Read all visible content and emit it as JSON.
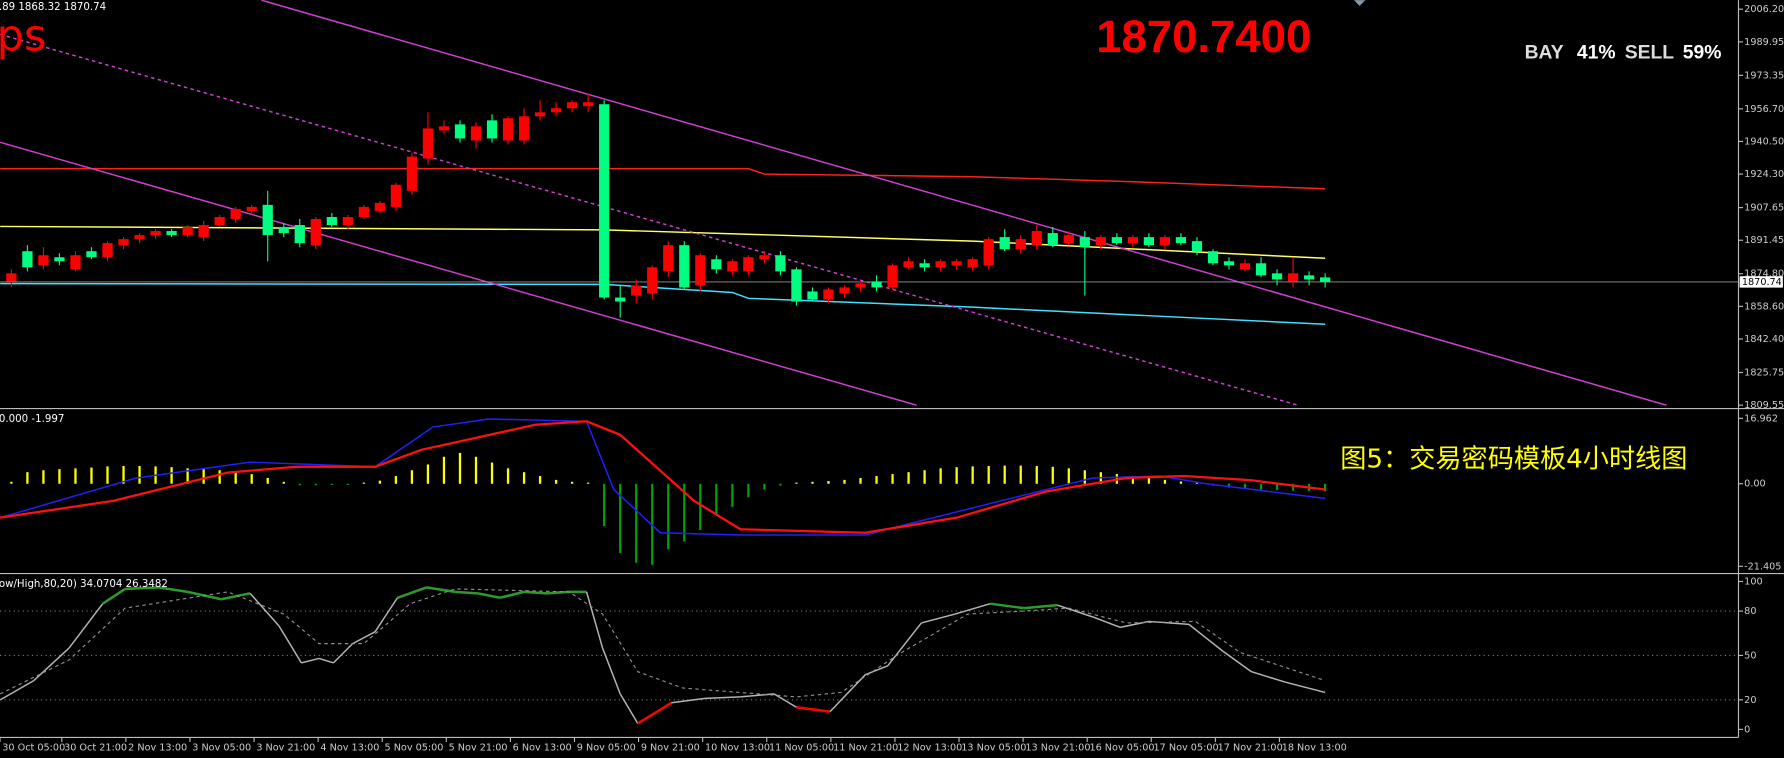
{
  "chart_data": [
    {
      "type": "candlestick",
      "header": ".89 1868.32 1870.74",
      "label": "ps",
      "price_text": "1870.7400",
      "sentiment": [
        {
          "name": "BAY",
          "label": "41%",
          "color": "#00e000"
        },
        {
          "name": "SELL",
          "label": "59%",
          "color": "#ff0000"
        }
      ],
      "current_price": 1870.74,
      "up_color": "#ff0000",
      "down_color": "#00ff80",
      "categories": [
        "30 Oct 05:00",
        null,
        null,
        null,
        "30 Oct 21:00",
        null,
        null,
        null,
        "2 Nov 13:00",
        null,
        null,
        null,
        "3 Nov 05:00",
        null,
        null,
        null,
        "3 Nov 21:00",
        null,
        null,
        null,
        "4 Nov 13:00",
        null,
        null,
        null,
        "5 Nov 05:00",
        null,
        null,
        null,
        "5 Nov 21:00",
        null,
        null,
        null,
        "6 Nov 13:00",
        null,
        null,
        null,
        "9 Nov 05:00",
        null,
        null,
        null,
        "9 Nov 21:00",
        null,
        null,
        null,
        "10 Nov 13:00",
        null,
        null,
        null,
        "11 Nov 05:00",
        null,
        null,
        null,
        "11 Nov 21:00",
        null,
        null,
        null,
        "12 Nov 13:00",
        null,
        null,
        null,
        "13 Nov 05:00",
        null,
        null,
        null,
        "13 Nov 21:00",
        null,
        null,
        null,
        "16 Nov 05:00",
        null,
        null,
        null,
        "17 Nov 05:00",
        null,
        null,
        null,
        "17 Nov 21:00",
        null,
        null,
        null,
        "18 Nov 13:00",
        null,
        null
      ],
      "open": [
        1871,
        1886,
        1879,
        1883,
        1877,
        1886,
        1883,
        1889,
        1892,
        1894,
        1896,
        1894,
        1893,
        1899,
        1902,
        1906,
        1909,
        1898,
        1899,
        1889,
        1903,
        1899,
        1903,
        1906,
        1908,
        1916,
        1932,
        1946,
        1949,
        1941,
        1951,
        1941,
        1941,
        1953,
        1955,
        1957,
        1958,
        1959,
        1863,
        1864,
        1865,
        1876,
        1889,
        1869,
        1882,
        1876,
        1876,
        1882,
        1884,
        1877,
        1866,
        1862,
        1865,
        1868,
        1871,
        1868,
        1878,
        1880,
        1878,
        1879,
        1878,
        1879,
        1893,
        1887,
        1889,
        1895,
        1890,
        1893,
        1889,
        1893,
        1890,
        1893,
        1889,
        1893,
        1891,
        1886,
        1881,
        1877,
        1880,
        1875,
        1871,
        1874,
        1873
      ],
      "high": [
        1877,
        1889,
        1888,
        1885,
        1886,
        1888,
        1891,
        1893,
        1895,
        1897,
        1897,
        1899,
        1901,
        1904,
        1908,
        1909,
        1916,
        1900,
        1902,
        1903,
        1905,
        1904,
        1909,
        1911,
        1920,
        1935,
        1955,
        1951,
        1951,
        1950,
        1954,
        1953,
        1957,
        1961,
        1960,
        1961,
        1964,
        1961,
        1869,
        1872,
        1879,
        1891,
        1891,
        1885,
        1884,
        1882,
        1884,
        1886,
        1886,
        1878,
        1868,
        1868,
        1869,
        1871,
        1874,
        1880,
        1883,
        1882,
        1882,
        1882,
        1883,
        1893,
        1897,
        1894,
        1899,
        1898,
        1896,
        1896,
        1894,
        1895,
        1894,
        1895,
        1894,
        1895,
        1893,
        1887,
        1883,
        1882,
        1883,
        1877,
        1883,
        1876,
        1875
      ],
      "low": [
        1868,
        1876,
        1877,
        1879,
        1876,
        1882,
        1881,
        1887,
        1890,
        1892,
        1893,
        1893,
        1891,
        1898,
        1900,
        1904,
        1881,
        1893,
        1888,
        1887,
        1898,
        1897,
        1902,
        1905,
        1906,
        1914,
        1929,
        1944,
        1940,
        1937,
        1940,
        1939,
        1939,
        1951,
        1953,
        1955,
        1955,
        1862,
        1853,
        1860,
        1862,
        1873,
        1867,
        1866,
        1875,
        1874,
        1874,
        1880,
        1874,
        1859,
        1861,
        1860,
        1863,
        1866,
        1866,
        1867,
        1877,
        1876,
        1876,
        1877,
        1876,
        1877,
        1886,
        1885,
        1887,
        1888,
        1889,
        1864,
        1887,
        1889,
        1888,
        1888,
        1887,
        1889,
        1884,
        1879,
        1877,
        1876,
        1873,
        1869,
        1868,
        1869,
        1868
      ],
      "close": [
        1875,
        1878,
        1884,
        1881,
        1884,
        1883,
        1890,
        1892,
        1894,
        1896,
        1894,
        1898,
        1899,
        1903,
        1907,
        1908,
        1894,
        1895,
        1890,
        1902,
        1899,
        1903,
        1908,
        1910,
        1919,
        1933,
        1947,
        1948,
        1942,
        1948,
        1942,
        1952,
        1953,
        1955,
        1957,
        1960,
        1960,
        1863,
        1861,
        1869,
        1878,
        1889,
        1868,
        1884,
        1877,
        1881,
        1883,
        1884,
        1876,
        1861,
        1862,
        1867,
        1868,
        1870,
        1868,
        1879,
        1881,
        1878,
        1881,
        1881,
        1882,
        1892,
        1887,
        1892,
        1896,
        1889,
        1894,
        1888,
        1893,
        1890,
        1893,
        1889,
        1893,
        1890,
        1886,
        1880,
        1879,
        1880,
        1874,
        1872,
        1875,
        1872,
        1870.74
      ],
      "lines": [
        {
          "color": "#ff2020",
          "x": [
            -0.7,
            46,
            47,
            60,
            70,
            82
          ],
          "values": [
            1927,
            1927,
            1924.3,
            1923,
            1920.5,
            1917
          ]
        },
        {
          "color": "#ffff66",
          "x": [
            -0.7,
            37,
            60,
            82
          ],
          "values": [
            1898.3,
            1896.6,
            1891,
            1882.5
          ]
        },
        {
          "color": "#40e0ff",
          "x": [
            -0.7,
            37,
            45,
            46,
            60,
            82
          ],
          "values": [
            1869.9,
            1869.5,
            1865.5,
            1862.6,
            1858.2,
            1849.7
          ]
        },
        {
          "color": "#d040d0",
          "x": [
            15.6,
            103.3
          ],
          "values": [
            2010.7,
            1809.5
          ]
        },
        {
          "color": "#d040d0",
          "x": [
            -0.7,
            56.5
          ],
          "values": [
            1940.1,
            1809.5
          ]
        },
        {
          "color": "#d040d0",
          "dash": true,
          "x": [
            -0.7,
            80.3
          ],
          "values": [
            1993.7,
            1809.5
          ]
        }
      ],
      "xlim": [
        -0.71,
        107.8
      ],
      "ylim": [
        1808.4,
        2010.7
      ],
      "yticks": [
        {
          "value": 2006.2,
          "label": "2006.20"
        },
        1989.95,
        1973.35,
        {
          "value": 1956.7,
          "label": "1956.70"
        },
        {
          "value": 1940.5,
          "label": "1940.50"
        },
        {
          "value": 1924.3,
          "label": "1924.30"
        },
        1907.65,
        1891.45,
        {
          "value": 1874.8,
          "label": "1874.80"
        },
        {
          "value": 1858.6,
          "label": "1858.60"
        },
        {
          "value": 1842.4,
          "label": "1842.40"
        },
        1825.75,
        1809.55
      ]
    },
    {
      "type": "bar",
      "header": "0.000 -1.997",
      "annotation": "图5：交易密码模板4小时线图",
      "pos_color": "#ffff00",
      "neg_color": "#00a000",
      "values": [
        0.5,
        3,
        3.5,
        3.8,
        4,
        4.2,
        4.5,
        4.6,
        4.6,
        4.5,
        4.3,
        4,
        3.8,
        3.5,
        3,
        2.5,
        1.5,
        0.5,
        -0.4,
        -0.4,
        -0.3,
        -0.3,
        0.3,
        0.8,
        2,
        3.5,
        5,
        7,
        8,
        7,
        5.5,
        4,
        3,
        2,
        1,
        0.5,
        0.3,
        -11,
        -18,
        -20.5,
        -21,
        -17,
        -15,
        -12,
        -8,
        -6,
        -3.5,
        -1.5,
        -0.5,
        0.3,
        0.5,
        0.7,
        1,
        1.5,
        2,
        2.5,
        3,
        3.5,
        4,
        4.3,
        4.5,
        4.6,
        4.7,
        4.7,
        4.6,
        4.4,
        4,
        3.5,
        3,
        2.5,
        2,
        1.5,
        1,
        0.6,
        0.3,
        -0.5,
        -1,
        -1.3,
        -1.5,
        -1.7,
        -1.8,
        -1.9,
        -1.997
      ],
      "lines": [
        {
          "color": "#2020ff",
          "x": [
            -0.7,
            7.8,
            14.9,
            22.7,
            26.3,
            29.8,
            35.9,
            37.6,
            40.5,
            45.5,
            53.3,
            56.1,
            61.8,
            67.5,
            71.7,
            74.6,
            82
          ],
          "values": [
            -8.8,
            1.5,
            5.6,
            4.4,
            14.7,
            16.8,
            16.2,
            -1.5,
            -12.7,
            -13.3,
            -13.3,
            -10.3,
            -4.4,
            1.5,
            2,
            0,
            -3.8
          ]
        },
        {
          "color": "#ff1010",
          "width": 2,
          "x": [
            -0.7,
            6.4,
            13.5,
            17.8,
            22.7,
            25.6,
            32.7,
            35.9,
            38,
            42.6,
            45.5,
            53.3,
            59,
            64.6,
            69.6,
            73.2,
            77.4,
            82
          ],
          "values": [
            -8.8,
            -4.4,
            2.9,
            4.4,
            4.4,
            8.8,
            15.3,
            16.2,
            12.7,
            -4.4,
            -11.8,
            -12.7,
            -8.8,
            -2,
            1.5,
            2,
            0.9,
            -1.5
          ]
        }
      ],
      "ylim": [
        -22.7,
        19.2
      ],
      "yticks": [
        16.962,
        {
          "value": 0,
          "label": "0.00"
        },
        -21.405
      ]
    },
    {
      "type": "line",
      "header": "ow/High,80,20) 34.0704 26.3482",
      "series": [
        {
          "color": "#b4b4b4",
          "high_color": "#2e9a2e",
          "low_color": "#ff0000",
          "x": [
            -0.7,
            1.4,
            3.6,
            5.7,
            7.1,
            9.2,
            11,
            13.1,
            14.9,
            16.7,
            18.1,
            19.2,
            20.1,
            21.3,
            22.7,
            24.1,
            25.9,
            27.7,
            29.1,
            30.5,
            32,
            33.4,
            34.8,
            35.9,
            36.9,
            38,
            39.1,
            41.2,
            43.3,
            45.5,
            47.6,
            49,
            51.1,
            53.3,
            54.7,
            56.8,
            58.9,
            61.1,
            63.2,
            65.3,
            67.5,
            69.2,
            71,
            73.5,
            75.6,
            77.4,
            79.5,
            82
          ],
          "values": [
            20,
            33,
            55,
            85,
            95,
            96,
            93,
            88,
            92,
            70,
            45,
            48,
            45,
            58,
            66,
            89,
            96,
            93,
            92,
            89,
            93,
            92,
            93,
            93,
            55,
            24,
            4,
            18,
            21,
            22,
            24,
            15,
            12,
            37,
            43,
            72,
            78,
            85,
            82,
            84,
            76,
            69,
            73,
            71,
            53,
            39,
            32,
            25
          ]
        },
        {
          "color": "#909090",
          "dash": true,
          "x": [
            -0.7,
            3.6,
            7.1,
            13.5,
            17,
            19.2,
            22,
            24.9,
            27.7,
            34.8,
            36.9,
            39.1,
            41.9,
            49,
            51.8,
            55.4,
            59.7,
            63.2,
            66,
            69.6,
            73.9,
            76.7,
            82
          ],
          "values": [
            24,
            47,
            82,
            93,
            78,
            58,
            58,
            85,
            95,
            93,
            78,
            39,
            28,
            22,
            25,
            51,
            78,
            80,
            82,
            72,
            73,
            52,
            33
          ]
        }
      ],
      "ylim": [
        -5.4,
        104.6
      ],
      "yticks": [
        100,
        80,
        50,
        20,
        0
      ]
    }
  ]
}
